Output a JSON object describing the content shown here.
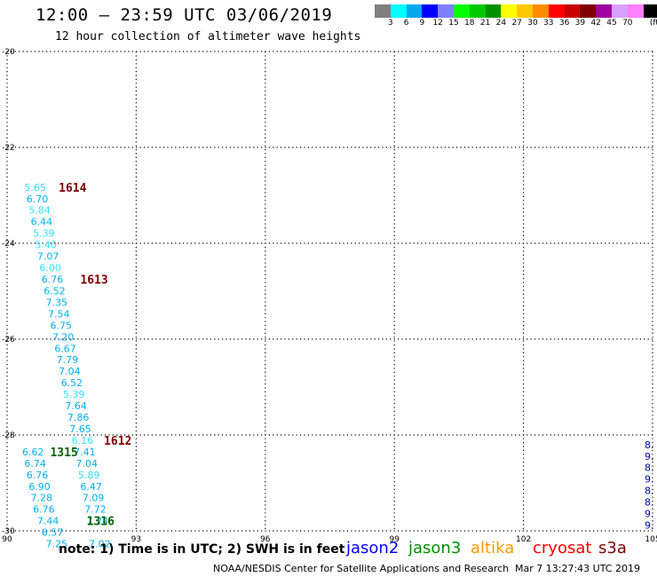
{
  "header": {
    "title": "12:00 — 23:59 UTC 03/06/2019",
    "subtitle": "12 hour collection of altimeter wave heights"
  },
  "colorbar": {
    "colors": [
      "#808080",
      "#00ffff",
      "#00a8f0",
      "#0000ff",
      "#8080ff",
      "#00ff00",
      "#00c800",
      "#009000",
      "#ffff00",
      "#ffc800",
      "#ff8c00",
      "#ff0000",
      "#c80000",
      "#800000",
      "#a000a0",
      "#d8a0ff",
      "#ff80ff",
      "#000000"
    ],
    "labels": [
      "3",
      "6",
      "9",
      "12",
      "15",
      "18",
      "21",
      "24",
      "27",
      "30",
      "33",
      "36",
      "39",
      "42",
      "45",
      "70"
    ],
    "unit": "(ft)"
  },
  "map": {
    "lat_labels": [
      "-20",
      "-22",
      "-24",
      "-26",
      "-28",
      "-30"
    ],
    "lon_labels": [
      "90",
      "93",
      "96",
      "99",
      "102",
      "105"
    ],
    "lat_range": [
      -30,
      -20
    ],
    "lon_range": [
      90,
      105
    ]
  },
  "points": [
    {
      "v": "5.65",
      "c": "#33e0ff",
      "x": 90.4,
      "y": -22.83
    },
    {
      "v": "6.70",
      "c": "#00b0f0",
      "x": 90.45,
      "y": -23.07
    },
    {
      "v": "5.84",
      "c": "#33e0ff",
      "x": 90.5,
      "y": -23.31
    },
    {
      "v": "6.44",
      "c": "#00b0f0",
      "x": 90.55,
      "y": -23.55
    },
    {
      "v": "5.39",
      "c": "#33e0ff",
      "x": 90.6,
      "y": -23.79
    },
    {
      "v": "5.40",
      "c": "#33e0ff",
      "x": 90.65,
      "y": -24.03
    },
    {
      "v": "7.07",
      "c": "#00b0f0",
      "x": 90.7,
      "y": -24.27
    },
    {
      "v": "6.00",
      "c": "#33e0ff",
      "x": 90.75,
      "y": -24.51
    },
    {
      "v": "6.76",
      "c": "#00b0f0",
      "x": 90.8,
      "y": -24.75
    },
    {
      "v": "6.52",
      "c": "#00b0f0",
      "x": 90.85,
      "y": -24.99
    },
    {
      "v": "7.35",
      "c": "#00b0f0",
      "x": 90.9,
      "y": -25.23
    },
    {
      "v": "7.54",
      "c": "#00b0f0",
      "x": 90.95,
      "y": -25.47
    },
    {
      "v": "6.75",
      "c": "#00b0f0",
      "x": 91.0,
      "y": -25.71
    },
    {
      "v": "7.20",
      "c": "#00b0f0",
      "x": 91.05,
      "y": -25.95
    },
    {
      "v": "6.67",
      "c": "#00b0f0",
      "x": 91.1,
      "y": -26.19
    },
    {
      "v": "7.79",
      "c": "#00b0f0",
      "x": 91.15,
      "y": -26.43
    },
    {
      "v": "7.04",
      "c": "#00b0f0",
      "x": 91.2,
      "y": -26.67
    },
    {
      "v": "6.52",
      "c": "#00b0f0",
      "x": 91.25,
      "y": -26.91
    },
    {
      "v": "5.39",
      "c": "#33e0ff",
      "x": 91.3,
      "y": -27.15
    },
    {
      "v": "7.64",
      "c": "#00b0f0",
      "x": 91.35,
      "y": -27.39
    },
    {
      "v": "7.86",
      "c": "#00b0f0",
      "x": 91.4,
      "y": -27.63
    },
    {
      "v": "7.65",
      "c": "#00b0f0",
      "x": 91.45,
      "y": -27.87
    },
    {
      "v": "6.16",
      "c": "#33e0ff",
      "x": 91.5,
      "y": -28.11
    },
    {
      "v": "6.62",
      "c": "#00b0f0",
      "x": 90.35,
      "y": -28.35
    },
    {
      "v": "7.41",
      "c": "#00b0f0",
      "x": 91.55,
      "y": -28.35
    },
    {
      "v": "6.74",
      "c": "#00b0f0",
      "x": 90.4,
      "y": -28.59
    },
    {
      "v": "7.04",
      "c": "#00b0f0",
      "x": 91.6,
      "y": -28.59
    },
    {
      "v": "6.76",
      "c": "#00b0f0",
      "x": 90.45,
      "y": -28.83
    },
    {
      "v": "5.89",
      "c": "#33e0ff",
      "x": 91.65,
      "y": -28.83
    },
    {
      "v": "6.90",
      "c": "#00b0f0",
      "x": 90.5,
      "y": -29.07
    },
    {
      "v": "6.47",
      "c": "#00b0f0",
      "x": 91.7,
      "y": -29.07
    },
    {
      "v": "7.28",
      "c": "#00b0f0",
      "x": 90.55,
      "y": -29.31
    },
    {
      "v": "7.09",
      "c": "#00b0f0",
      "x": 91.75,
      "y": -29.31
    },
    {
      "v": "6.76",
      "c": "#00b0f0",
      "x": 90.6,
      "y": -29.55
    },
    {
      "v": "7.72",
      "c": "#00b0f0",
      "x": 91.8,
      "y": -29.55
    },
    {
      "v": "7.44",
      "c": "#00b0f0",
      "x": 90.7,
      "y": -29.79
    },
    {
      "v": "7.24",
      "c": "#00b0f0",
      "x": 91.85,
      "y": -29.79
    },
    {
      "v": "6.57",
      "c": "#00b0f0",
      "x": 90.8,
      "y": -30.03
    },
    {
      "v": "7.25",
      "c": "#00b0f0",
      "x": 90.9,
      "y": -30.27
    },
    {
      "v": "7.02",
      "c": "#00b0f0",
      "x": 91.9,
      "y": -30.27
    },
    {
      "v": "8.",
      "c": "#0000a0",
      "x": 105.0,
      "y": -28.2
    },
    {
      "v": "9.",
      "c": "#0000a0",
      "x": 105.0,
      "y": -28.44
    },
    {
      "v": "8.",
      "c": "#0000a0",
      "x": 105.0,
      "y": -28.68
    },
    {
      "v": "9.",
      "c": "#0000a0",
      "x": 105.0,
      "y": -28.92
    },
    {
      "v": "8.",
      "c": "#0000a0",
      "x": 105.0,
      "y": -29.16
    },
    {
      "v": "8.",
      "c": "#0000a0",
      "x": 105.0,
      "y": -29.4
    },
    {
      "v": "9.",
      "c": "#0000a0",
      "x": 104.95,
      "y": -29.64
    },
    {
      "v": "9.",
      "c": "#0000a0",
      "x": 104.85,
      "y": -29.88
    }
  ],
  "times": [
    {
      "t": "1614",
      "c": "#800000",
      "x": 91.2,
      "y": -22.83
    },
    {
      "t": "1613",
      "c": "#800000",
      "x": 91.7,
      "y": -24.75
    },
    {
      "t": "1612",
      "c": "#800000",
      "x": 92.25,
      "y": -28.11
    },
    {
      "t": "1315",
      "c": "#006400",
      "x": 91.0,
      "y": -28.35
    },
    {
      "t": "1316",
      "c": "#006400",
      "x": 91.85,
      "y": -29.79
    }
  ],
  "footer": {
    "note": "note: 1) Time is in UTC; 2) SWH is in feet",
    "legend": [
      {
        "label": "jason2",
        "color": "#0000ff"
      },
      {
        "label": "jason3",
        "color": "#009000"
      },
      {
        "label": "altika",
        "color": "#ff9900"
      },
      {
        "label": "cryosat",
        "color": "#ff0000"
      },
      {
        "label": "s3a",
        "color": "#800000"
      }
    ],
    "credit": "NOAA/NESDIS Center for Satellite Applications and Research",
    "timestamp": "Mar  7 13:27:43 UTC 2019"
  }
}
